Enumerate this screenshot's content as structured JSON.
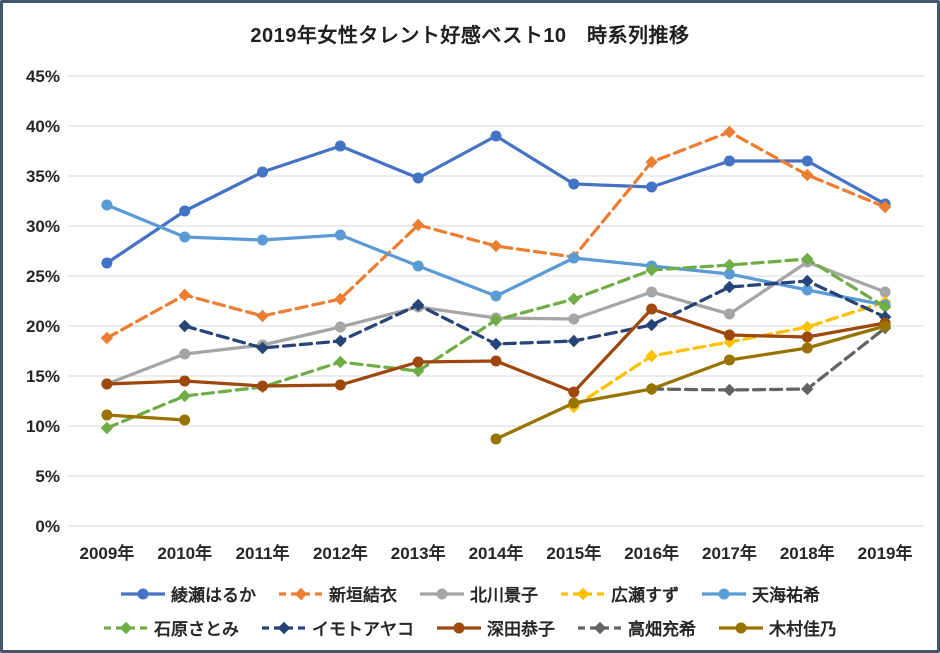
{
  "frame": {
    "background": "#FFFFFF",
    "border_color": "#44546A"
  },
  "axis": {
    "tick_label_color": "#262626",
    "grid_color": "#D9D9D9",
    "axis_line_color": "#D0D0D0"
  },
  "chart_data": {
    "type": "line",
    "title": "2019年女性タレント好感ベスト10　時系列推移",
    "xlabel": "",
    "ylabel": "",
    "categories": [
      "2009年",
      "2010年",
      "2011年",
      "2012年",
      "2013年",
      "2014年",
      "2015年",
      "2016年",
      "2017年",
      "2018年",
      "2019年"
    ],
    "ylim": [
      0,
      45
    ],
    "ytick_step": 5,
    "ytick_suffix": "%",
    "grid": true,
    "legend_position": "bottom",
    "legend_rows": 2,
    "series": [
      {
        "name": "綾瀬はるか",
        "color": "#4472C4",
        "style": "solid",
        "marker": "circle",
        "values": [
          26.3,
          31.5,
          35.4,
          38.0,
          34.8,
          39.0,
          34.2,
          33.9,
          36.5,
          36.5,
          32.2
        ]
      },
      {
        "name": "新垣結衣",
        "color": "#ED7D31",
        "style": "dashed",
        "marker": "diamond",
        "values": [
          18.8,
          23.1,
          21.0,
          22.7,
          30.1,
          28.0,
          26.9,
          36.4,
          39.4,
          35.1,
          31.9
        ]
      },
      {
        "name": "北川景子",
        "color": "#A5A5A5",
        "style": "solid",
        "marker": "circle",
        "values": [
          14.2,
          17.2,
          18.1,
          19.9,
          21.9,
          20.8,
          20.7,
          23.4,
          21.2,
          26.4,
          23.4
        ]
      },
      {
        "name": "広瀬すず",
        "color": "#FFC000",
        "style": "dashed",
        "marker": "diamond",
        "values": [
          null,
          null,
          null,
          null,
          null,
          null,
          11.9,
          17.0,
          18.4,
          19.9,
          22.4
        ]
      },
      {
        "name": "天海祐希",
        "color": "#5B9BD5",
        "style": "solid",
        "marker": "circle",
        "values": [
          32.1,
          28.9,
          28.6,
          29.1,
          26.0,
          23.0,
          26.8,
          26.0,
          25.2,
          23.6,
          22.1
        ]
      },
      {
        "name": "石原さとみ",
        "color": "#70AD47",
        "style": "dashed",
        "marker": "diamond",
        "values": [
          9.8,
          13.0,
          13.9,
          16.4,
          15.5,
          20.6,
          22.7,
          25.6,
          26.1,
          26.7,
          21.9
        ]
      },
      {
        "name": "イモトアヤコ",
        "color": "#264478",
        "style": "dashed",
        "marker": "diamond",
        "values": [
          null,
          20.0,
          17.8,
          18.5,
          22.1,
          18.2,
          18.5,
          20.1,
          23.9,
          24.5,
          20.9
        ]
      },
      {
        "name": "深田恭子",
        "color": "#9E480E",
        "style": "solid",
        "marker": "circle",
        "values": [
          14.2,
          14.5,
          14.0,
          14.1,
          16.4,
          16.5,
          13.4,
          21.7,
          19.1,
          18.9,
          20.3
        ]
      },
      {
        "name": "高畑充希",
        "color": "#636363",
        "style": "dashed",
        "marker": "diamond",
        "values": [
          null,
          null,
          null,
          null,
          null,
          null,
          null,
          13.7,
          13.6,
          13.7,
          19.8
        ]
      },
      {
        "name": "木村佳乃",
        "color": "#997300",
        "style": "solid",
        "marker": "circle",
        "values": [
          11.1,
          10.6,
          null,
          null,
          null,
          8.7,
          12.3,
          13.7,
          16.6,
          17.8,
          20.0
        ]
      }
    ]
  }
}
